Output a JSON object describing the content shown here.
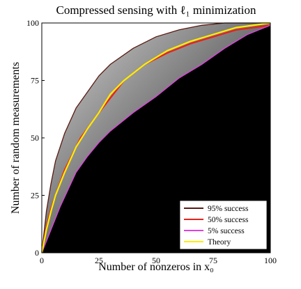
{
  "chart_data": {
    "type": "line",
    "title": "Compressed sensing with ℓ₁ minimization",
    "x_label": "Number of nonzeros in x₀",
    "y_label": "Number of random measurements",
    "xlim": [
      0,
      100
    ],
    "ylim": [
      0,
      100
    ],
    "xticks": [
      0,
      25,
      50,
      75,
      100
    ],
    "yticks": [
      0,
      25,
      50,
      75,
      100
    ],
    "legend": "lower right",
    "series": [
      {
        "name": "95% success",
        "color": "#5a1a12",
        "x": [
          0,
          2,
          4,
          6,
          10,
          15,
          20,
          25,
          30,
          40,
          50,
          60,
          70,
          80,
          100
        ],
        "values": [
          0,
          18,
          30,
          40,
          52,
          63,
          70,
          77,
          82,
          89,
          94,
          97,
          99,
          100,
          100
        ]
      },
      {
        "name": "50% success",
        "color": "#e8201a",
        "x": [
          0,
          2,
          4,
          6,
          10,
          17,
          25,
          36,
          45,
          55,
          65,
          75,
          85,
          100
        ],
        "values": [
          0,
          11,
          19,
          25,
          36,
          50,
          61,
          75,
          82,
          87,
          91,
          94,
          97,
          99
        ]
      },
      {
        "name": "5% success",
        "color": "#e040e0",
        "x": [
          0,
          4,
          8,
          15,
          20,
          25,
          30,
          40,
          50,
          60,
          70,
          80,
          90,
          100
        ],
        "values": [
          0,
          10,
          20,
          35,
          42,
          48,
          53,
          61,
          68,
          76,
          82,
          89,
          95,
          99
        ]
      },
      {
        "name": "Theory",
        "color": "#ffee00",
        "x": [
          0,
          2,
          4,
          6,
          10,
          15,
          20,
          25,
          30,
          36,
          45,
          55,
          65,
          75,
          85,
          100
        ],
        "values": [
          0,
          10,
          18,
          25,
          35,
          46,
          54,
          61,
          69,
          75,
          82,
          88,
          92,
          95,
          98,
          100
        ]
      }
    ]
  }
}
